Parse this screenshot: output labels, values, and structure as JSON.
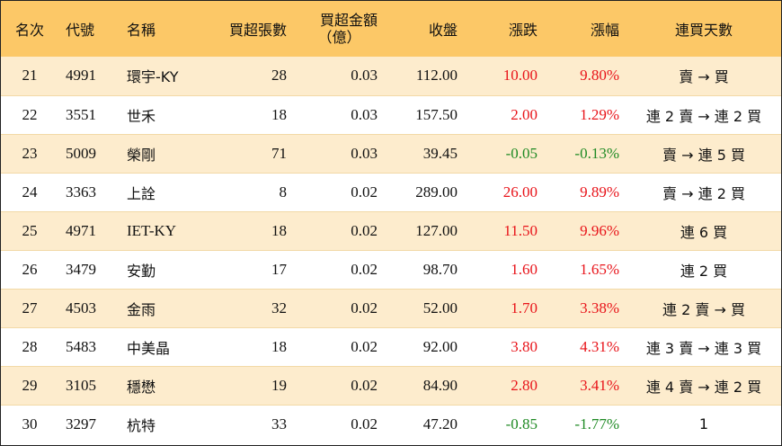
{
  "headers": {
    "rank": "名次",
    "code": "代號",
    "name": "名稱",
    "net_buy_lots": "買超張數",
    "net_buy_amount_line1": "買超金額",
    "net_buy_amount_line2": "（億）",
    "close": "收盤",
    "change": "漲跌",
    "change_pct": "漲幅",
    "streak": "連買天數"
  },
  "rows": [
    {
      "rank": "21",
      "code": "4991",
      "name": "環宇-KY",
      "lots": "28",
      "amount": "0.03",
      "close": "112.00",
      "change": "10.00",
      "pct": "9.80%",
      "direction": "up",
      "streak": "賣 → 買"
    },
    {
      "rank": "22",
      "code": "3551",
      "name": "世禾",
      "lots": "18",
      "amount": "0.03",
      "close": "157.50",
      "change": "2.00",
      "pct": "1.29%",
      "direction": "up",
      "streak": "連 2 賣 → 連 2 買"
    },
    {
      "rank": "23",
      "code": "5009",
      "name": "榮剛",
      "lots": "71",
      "amount": "0.03",
      "close": "39.45",
      "change": "-0.05",
      "pct": "-0.13%",
      "direction": "down",
      "streak": "賣 → 連 5 買"
    },
    {
      "rank": "24",
      "code": "3363",
      "name": "上詮",
      "lots": "8",
      "amount": "0.02",
      "close": "289.00",
      "change": "26.00",
      "pct": "9.89%",
      "direction": "up",
      "streak": "賣 → 連 2 買"
    },
    {
      "rank": "25",
      "code": "4971",
      "name": "IET-KY",
      "lots": "18",
      "amount": "0.02",
      "close": "127.00",
      "change": "11.50",
      "pct": "9.96%",
      "direction": "up",
      "streak": "連 6 買"
    },
    {
      "rank": "26",
      "code": "3479",
      "name": "安勤",
      "lots": "17",
      "amount": "0.02",
      "close": "98.70",
      "change": "1.60",
      "pct": "1.65%",
      "direction": "up",
      "streak": "連 2 買"
    },
    {
      "rank": "27",
      "code": "4503",
      "name": "金雨",
      "lots": "32",
      "amount": "0.02",
      "close": "52.00",
      "change": "1.70",
      "pct": "3.38%",
      "direction": "up",
      "streak": "連 2 賣 → 買"
    },
    {
      "rank": "28",
      "code": "5483",
      "name": "中美晶",
      "lots": "18",
      "amount": "0.02",
      "close": "92.00",
      "change": "3.80",
      "pct": "4.31%",
      "direction": "up",
      "streak": "連 3 賣 → 連 3 買"
    },
    {
      "rank": "29",
      "code": "3105",
      "name": "穩懋",
      "lots": "19",
      "amount": "0.02",
      "close": "84.90",
      "change": "2.80",
      "pct": "3.41%",
      "direction": "up",
      "streak": "連 4 賣 → 連 2 買"
    },
    {
      "rank": "30",
      "code": "3297",
      "name": "杭特",
      "lots": "33",
      "amount": "0.02",
      "close": "47.20",
      "change": "-0.85",
      "pct": "-1.77%",
      "direction": "down",
      "streak": "1"
    }
  ],
  "colors": {
    "header_bg": "#fcc867",
    "odd_row_bg": "#fdeccd",
    "even_row_bg": "#ffffff",
    "up": "#e8141a",
    "down": "#1f8a24"
  }
}
